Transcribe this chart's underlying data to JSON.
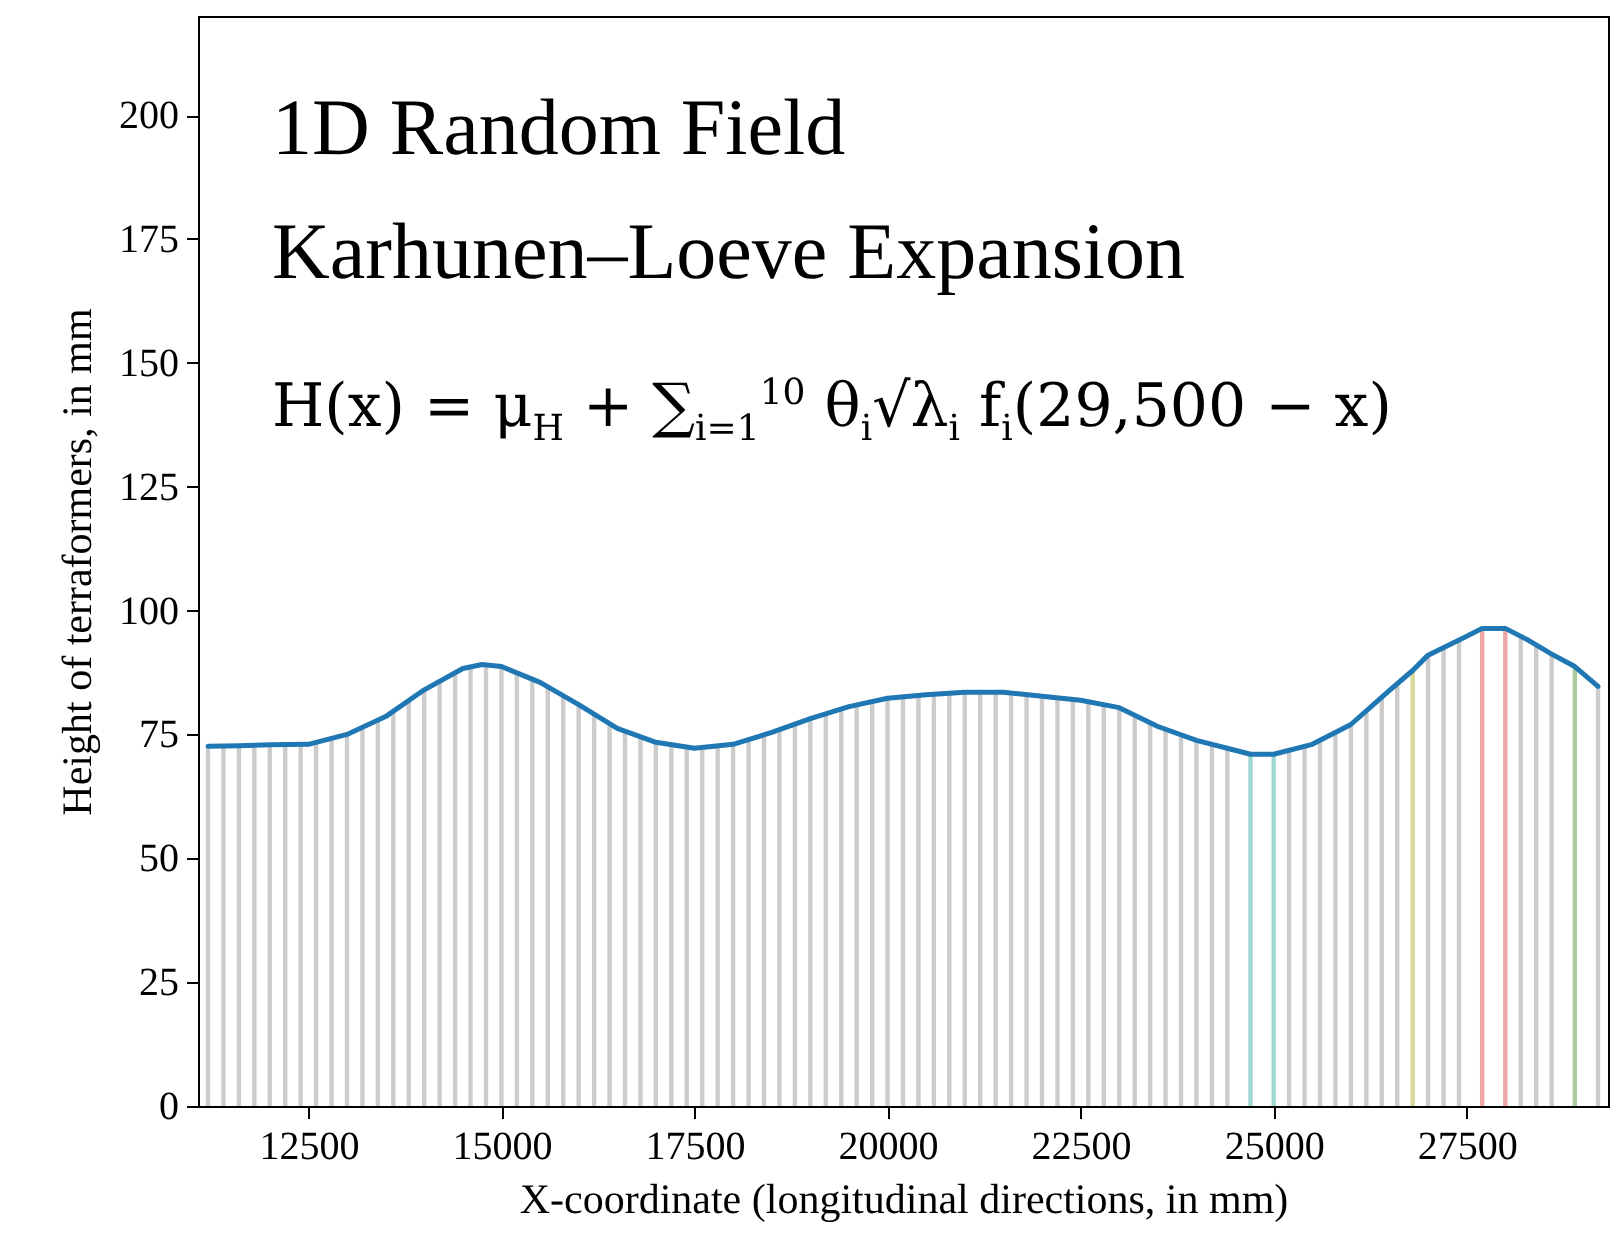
{
  "chart_data": {
    "type": "line",
    "xlabel": "X-coordinate (longitudinal directions, in mm)",
    "ylabel": "Height of terraformers, in mm",
    "annotations": [
      "1D Random Field",
      "Karhunen–Loeve Expansion",
      "H(x) = μ$_{H}$ + ∑$_{i=1}$$^{10}$ θ$_{i}$√λ$_{i}$ f$_{i}$(29,500 − x)"
    ],
    "xlim": [
      11200,
      29200
    ],
    "xticks": [
      12500,
      15000,
      17500,
      20000,
      22500,
      25000,
      27500
    ],
    "ylim": [
      0,
      220
    ],
    "yticks": [
      0,
      25,
      50,
      75,
      100,
      125,
      150,
      175,
      200
    ],
    "grid": false,
    "series": [
      {
        "type": "bar",
        "x": [
          11200,
          11400,
          11600,
          11800,
          12000,
          12200,
          12400,
          12600,
          12800,
          13000,
          13200,
          13400,
          13600,
          13800,
          14000,
          14200,
          14400,
          14600,
          14800,
          15000,
          15200,
          15400,
          15600,
          15800,
          16000,
          16200,
          16400,
          16600,
          16800,
          17000,
          17200,
          17400,
          17600,
          17800,
          18000,
          18200,
          18400,
          18600,
          18800,
          19000,
          19200,
          19400,
          19600,
          19800,
          20000,
          20200,
          20400,
          20600,
          20800,
          21000,
          21200,
          21400,
          21600,
          21800,
          22000,
          22200,
          22400,
          22600,
          22800,
          23000,
          23200,
          23400,
          23600,
          23800,
          24000,
          24200,
          24400,
          24700,
          25000,
          25200,
          25400,
          25600,
          25800,
          26000,
          26200,
          26400,
          26600,
          26800,
          27000,
          27200,
          27400,
          27700,
          28000,
          28200,
          28400,
          28600,
          28900,
          29200
        ],
        "values": [
          72.6,
          72.6,
          72.7,
          72.8,
          72.9,
          73,
          73,
          73.3,
          74,
          75,
          76.3,
          78,
          79.6,
          81.8,
          84,
          85.7,
          87.4,
          88.7,
          89.1,
          88.7,
          87.6,
          86.2,
          84.6,
          82.8,
          81,
          79,
          77.1,
          75.6,
          74.4,
          73.4,
          72.7,
          72.3,
          72.3,
          72.6,
          73,
          73.9,
          74.9,
          75.9,
          77.1,
          78.2,
          79.2,
          80.1,
          81,
          81.7,
          82.3,
          82.6,
          82.9,
          83.1,
          83.3,
          83.5,
          83.5,
          83.5,
          83.4,
          83.1,
          82.7,
          82.4,
          82.1,
          81.7,
          81.2,
          80.4,
          78.9,
          77.3,
          76.1,
          74.9,
          73.8,
          72.9,
          72.2,
          71,
          71,
          71.6,
          72.5,
          73.6,
          75.3,
          77,
          79.6,
          82.4,
          85.2,
          87.9,
          91,
          92.6,
          94.1,
          96.4,
          96.4,
          95,
          93.1,
          91.2,
          88.7,
          84.7
        ],
        "colors": [
          "#cccccc",
          "#cccccc",
          "#cccccc",
          "#cccccc",
          "#cccccc",
          "#cccccc",
          "#cccccc",
          "#cccccc",
          "#cccccc",
          "#cccccc",
          "#cccccc",
          "#cccccc",
          "#cccccc",
          "#cccccc",
          "#cccccc",
          "#cccccc",
          "#cccccc",
          "#cccccc",
          "#cccccc",
          "#cccccc",
          "#cccccc",
          "#cccccc",
          "#cccccc",
          "#cccccc",
          "#cccccc",
          "#cccccc",
          "#cccccc",
          "#cccccc",
          "#cccccc",
          "#cccccc",
          "#cccccc",
          "#cccccc",
          "#cccccc",
          "#cccccc",
          "#cccccc",
          "#cccccc",
          "#cccccc",
          "#cccccc",
          "#cccccc",
          "#cccccc",
          "#cccccc",
          "#cccccc",
          "#cccccc",
          "#cccccc",
          "#cccccc",
          "#cccccc",
          "#cccccc",
          "#cccccc",
          "#cccccc",
          "#cccccc",
          "#cccccc",
          "#cccccc",
          "#cccccc",
          "#cccccc",
          "#cccccc",
          "#cccccc",
          "#cccccc",
          "#cccccc",
          "#cccccc",
          "#cccccc",
          "#cccccc",
          "#cccccc",
          "#cccccc",
          "#cccccc",
          "#cccccc",
          "#cccccc",
          "#cccccc",
          "#9fd8d2",
          "#9fd8d2",
          "#cccccc",
          "#cccccc",
          "#cccccc",
          "#cccccc",
          "#cccccc",
          "#cccccc",
          "#cccccc",
          "#cccccc",
          "#d8d89a",
          "#cccccc",
          "#cccccc",
          "#cccccc",
          "#eea6a6",
          "#eea6a6",
          "#cccccc",
          "#cccccc",
          "#cccccc",
          "#a9cc9f",
          "#cccccc"
        ]
      },
      {
        "color": "#1f77b4",
        "x": [
          11200,
          11600,
          12000,
          12500,
          13000,
          13500,
          14000,
          14500,
          14750,
          15000,
          15500,
          16000,
          16500,
          17000,
          17500,
          18000,
          18500,
          19000,
          19500,
          20000,
          20500,
          21000,
          21500,
          22000,
          22500,
          23000,
          23500,
          24000,
          24500,
          24700,
          25000,
          25500,
          26000,
          26500,
          26800,
          27000,
          27500,
          27700,
          28000,
          28300,
          28600,
          28900,
          29200
        ],
        "values": [
          72.6,
          72.7,
          72.9,
          73,
          75,
          78.6,
          84,
          88.3,
          89.1,
          88.7,
          85.5,
          81,
          76.2,
          73.4,
          72.2,
          73,
          75.4,
          78.2,
          80.6,
          82.3,
          83,
          83.5,
          83.5,
          82.7,
          81.9,
          80.4,
          76.6,
          73.8,
          71.8,
          71,
          71,
          73,
          77,
          83.9,
          87.9,
          91,
          94.8,
          96.4,
          96.4,
          94,
          91.2,
          88.7,
          84.7
        ]
      }
    ]
  }
}
